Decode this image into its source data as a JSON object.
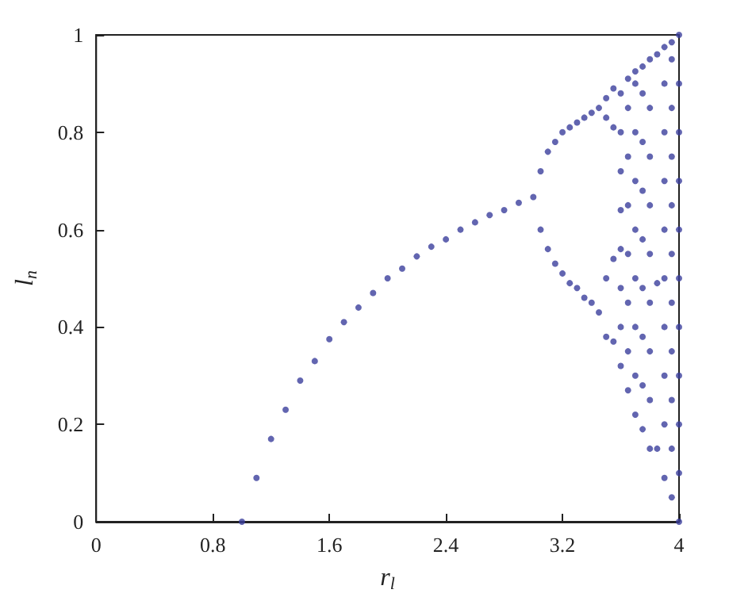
{
  "chart_data": {
    "type": "scatter",
    "xlabel": "r$_{l}$",
    "ylabel": "l$_{n}$",
    "xlim": [
      0,
      4
    ],
    "xticks": [
      0,
      0.8,
      1.6,
      2.4,
      3.2,
      4
    ],
    "ylim": [
      0,
      1
    ],
    "yticks": [
      0,
      0.2,
      0.4,
      0.6,
      0.8,
      1
    ],
    "marker": "circle",
    "series": [
      {
        "color": "#3b3f9c",
        "x": [
          1,
          1.1,
          1.2,
          1.3,
          1.4,
          1.5,
          1.6,
          1.7,
          1.8,
          1.9,
          2,
          2.1,
          2.2,
          2.3,
          2.4,
          2.5,
          2.6,
          2.7,
          2.8,
          2.9,
          3,
          3.05,
          3.05,
          3.1,
          3.1,
          3.15,
          3.15,
          3.2,
          3.2,
          3.25,
          3.25,
          3.3,
          3.3,
          3.35,
          3.35,
          3.4,
          3.4,
          3.45,
          3.45,
          3.5,
          3.5,
          3.5,
          3.5,
          3.55,
          3.55,
          3.55,
          3.55,
          3.6,
          3.6,
          3.6,
          3.6,
          3.6,
          3.6,
          3.6,
          3.6,
          3.65,
          3.65,
          3.65,
          3.65,
          3.65,
          3.65,
          3.65,
          3.65,
          3.7,
          3.7,
          3.7,
          3.7,
          3.7,
          3.7,
          3.7,
          3.7,
          3.7,
          3.75,
          3.75,
          3.75,
          3.75,
          3.75,
          3.75,
          3.75,
          3.75,
          3.75,
          3.8,
          3.8,
          3.8,
          3.8,
          3.8,
          3.8,
          3.8,
          3.8,
          3.8,
          3.85,
          3.85,
          3.85,
          3.9,
          3.9,
          3.9,
          3.9,
          3.9,
          3.9,
          3.9,
          3.9,
          3.9,
          3.9,
          3.95,
          3.95,
          3.95,
          3.95,
          3.95,
          3.95,
          3.95,
          3.95,
          3.95,
          3.95,
          3.95,
          4,
          4,
          4,
          4,
          4,
          4,
          4,
          4,
          4,
          4,
          4
        ],
        "values": [
          0,
          0.09,
          0.17,
          0.23,
          0.29,
          0.33,
          0.375,
          0.41,
          0.44,
          0.47,
          0.5,
          0.52,
          0.545,
          0.565,
          0.58,
          0.6,
          0.615,
          0.63,
          0.64,
          0.655,
          0.667,
          0.6,
          0.72,
          0.56,
          0.76,
          0.53,
          0.78,
          0.51,
          0.8,
          0.49,
          0.81,
          0.48,
          0.82,
          0.46,
          0.83,
          0.45,
          0.84,
          0.43,
          0.85,
          0.38,
          0.5,
          0.83,
          0.87,
          0.37,
          0.54,
          0.81,
          0.89,
          0.32,
          0.4,
          0.48,
          0.56,
          0.64,
          0.72,
          0.8,
          0.88,
          0.27,
          0.35,
          0.45,
          0.55,
          0.65,
          0.75,
          0.85,
          0.91,
          0.22,
          0.3,
          0.4,
          0.5,
          0.6,
          0.7,
          0.8,
          0.9,
          0.925,
          0.19,
          0.28,
          0.38,
          0.48,
          0.58,
          0.68,
          0.78,
          0.88,
          0.935,
          0.15,
          0.25,
          0.35,
          0.45,
          0.55,
          0.65,
          0.75,
          0.85,
          0.95,
          0.15,
          0.49,
          0.96,
          0.09,
          0.2,
          0.3,
          0.4,
          0.5,
          0.6,
          0.7,
          0.8,
          0.9,
          0.975,
          0.05,
          0.15,
          0.25,
          0.35,
          0.45,
          0.55,
          0.65,
          0.75,
          0.85,
          0.95,
          0.985,
          0,
          0.1,
          0.2,
          0.3,
          0.4,
          0.5,
          0.6,
          0.7,
          0.8,
          0.9,
          1
        ]
      }
    ]
  }
}
